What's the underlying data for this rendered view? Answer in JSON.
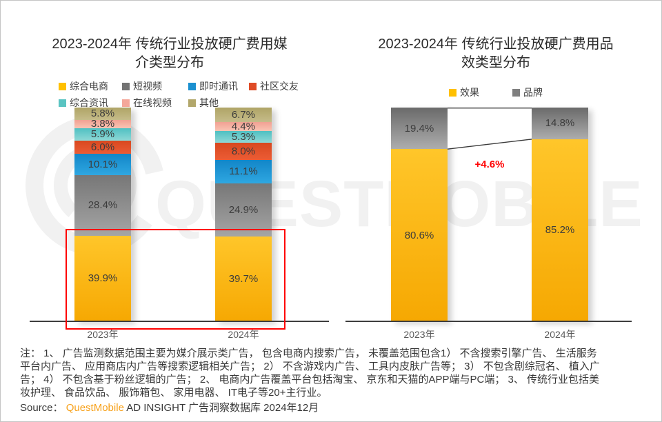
{
  "watermark": {
    "text": "QUESTMOBILE",
    "logo": "questmobile-ring-logo",
    "color": "#F1F1F1"
  },
  "chart_data": [
    {
      "type": "bar",
      "variant": "stacked-100-percent",
      "title": "2023-2024年 传统行业投放硬广费用媒介类型分布",
      "title_lines": [
        "2023-2024年 传统行业投放硬广费用媒",
        "介类型分布"
      ],
      "categories": [
        "2023年",
        "2024年"
      ],
      "series": [
        {
          "name": "综合电商",
          "color": "#FFC000",
          "gradient": [
            "#FFC62A",
            "#F6A802"
          ],
          "values": [
            39.9,
            39.7
          ]
        },
        {
          "name": "短视频",
          "color": "#737373",
          "gradient": [
            "#777777",
            "#A5A5A5"
          ],
          "values": [
            28.4,
            24.9
          ]
        },
        {
          "name": "即时通讯",
          "color": "#1B90D0",
          "gradient": [
            "#1286C8",
            "#2FA7E1"
          ],
          "values": [
            10.1,
            11.1
          ]
        },
        {
          "name": "社区交友",
          "color": "#DF4B26",
          "gradient": [
            "#D8481F",
            "#EC5C35"
          ],
          "values": [
            6.0,
            8.0
          ]
        },
        {
          "name": "综合资讯",
          "color": "#5AC4C2",
          "gradient": [
            "#4FC0C2",
            "#8FD8D6"
          ],
          "values": [
            5.9,
            5.3
          ]
        },
        {
          "name": "在线视频",
          "color": "#F4A79A",
          "gradient": [
            "#F1A193",
            "#FAC4B3"
          ],
          "values": [
            3.8,
            4.4
          ]
        },
        {
          "name": "其他",
          "color": "#B2A76B",
          "gradient": [
            "#AFA466",
            "#C6BC8A"
          ],
          "values": [
            5.8,
            6.7
          ]
        }
      ],
      "ylim": [
        0,
        100
      ],
      "grid": false,
      "legend_position": "top",
      "highlight": {
        "type": "box",
        "series": "综合电商",
        "color": "#FF0000"
      }
    },
    {
      "type": "bar",
      "variant": "stacked-100-percent",
      "title": "2023-2024年 传统行业投放硬广费用品效类型分布",
      "title_lines": [
        "2023-2024年 传统行业投放硬广费用品",
        "效类型分布"
      ],
      "categories": [
        "2023年",
        "2024年"
      ],
      "series": [
        {
          "name": "效果",
          "color": "#FFC000",
          "gradient": [
            "#FFC62A",
            "#F6A802"
          ],
          "values": [
            80.6,
            85.2
          ]
        },
        {
          "name": "品牌",
          "color": "#7F7F7F",
          "gradient": [
            "#6A6A6A",
            "#ADADAD"
          ],
          "values": [
            19.4,
            14.8
          ]
        }
      ],
      "ylim": [
        0,
        100
      ],
      "grid": false,
      "legend_position": "top",
      "annotation": {
        "text": "+4.6%",
        "color": "#FF0000"
      },
      "connector_lines": true
    }
  ],
  "footer": {
    "note_lines": [
      "注： 1、 广告监测数据范围主要为媒介展示类广告， 包含电商内搜索广告， 未覆盖范围包含1） 不含搜索引擎广告、 生活服务",
      "平台内广告、 应用商店内广告等搜索逻辑相关广告； 2） 不含游戏内广告、 工具内皮肤广告等； 3） 不包含剧综冠名、 植入广",
      "告； 4） 不包含基于粉丝逻辑的广告； 2、 电商内广告覆盖平台包括淘宝、 京东和天猫的APP端与PC端； 3、 传统行业包括美",
      "妆护理、 食品饮品、 服饰箱包、 家用电器、 IT电子等20+主行业。"
    ],
    "source_prefix": "Source：",
    "source_brand": "QuestMobile",
    "source_rest": " AD INSIGHT 广告洞察数据库 2024年12月",
    "brand_color": "#F7A11A"
  }
}
